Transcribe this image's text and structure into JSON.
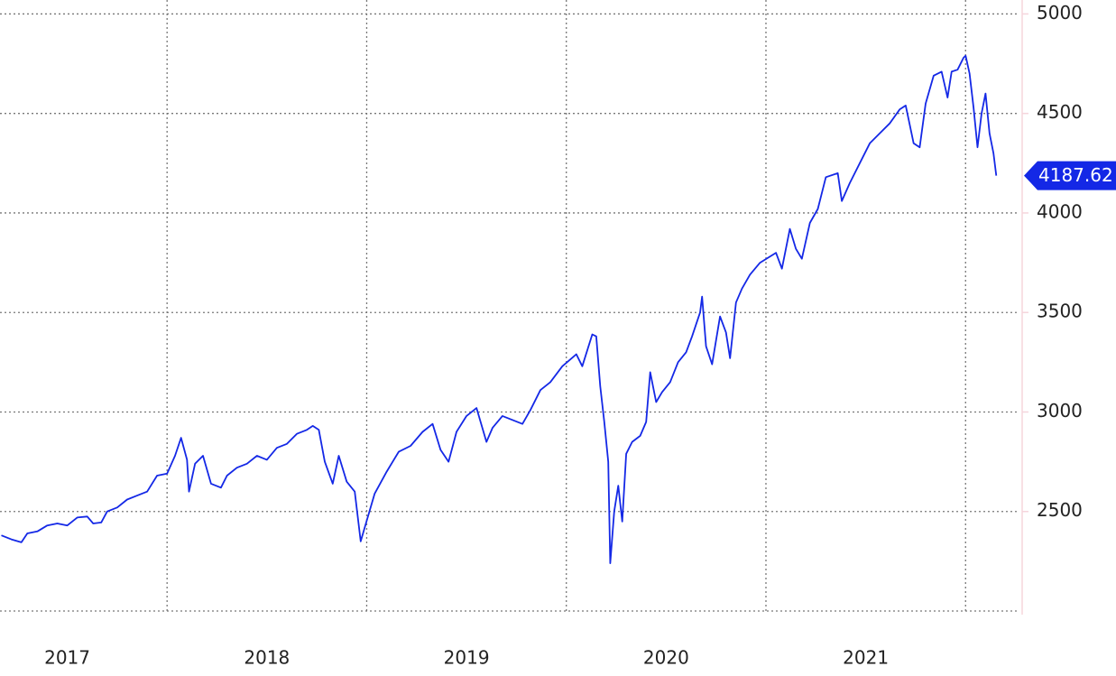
{
  "chart_data": {
    "type": "line",
    "x": [
      2017.17,
      2017.22,
      2017.27,
      2017.3,
      2017.35,
      2017.4,
      2017.45,
      2017.5,
      2017.55,
      2017.6,
      2017.63,
      2017.67,
      2017.7,
      2017.75,
      2017.8,
      2017.85,
      2017.9,
      2017.95,
      2018.0,
      2018.04,
      2018.07,
      2018.1,
      2018.11,
      2018.14,
      2018.18,
      2018.22,
      2018.27,
      2018.3,
      2018.35,
      2018.4,
      2018.45,
      2018.5,
      2018.55,
      2018.6,
      2018.65,
      2018.7,
      2018.73,
      2018.76,
      2018.79,
      2018.83,
      2018.86,
      2018.9,
      2018.94,
      2018.97,
      2018.99,
      2019.04,
      2019.1,
      2019.16,
      2019.22,
      2019.28,
      2019.33,
      2019.37,
      2019.41,
      2019.45,
      2019.5,
      2019.55,
      2019.6,
      2019.63,
      2019.68,
      2019.73,
      2019.78,
      2019.82,
      2019.87,
      2019.92,
      2019.98,
      2020.05,
      2020.08,
      2020.13,
      2020.15,
      2020.17,
      2020.19,
      2020.21,
      2020.22,
      2020.24,
      2020.26,
      2020.28,
      2020.3,
      2020.33,
      2020.37,
      2020.4,
      2020.42,
      2020.45,
      2020.48,
      2020.52,
      2020.56,
      2020.6,
      2020.63,
      2020.67,
      2020.68,
      2020.7,
      2020.73,
      2020.77,
      2020.8,
      2020.82,
      2020.85,
      2020.88,
      2020.92,
      2020.97,
      2021.05,
      2021.08,
      2021.12,
      2021.15,
      2021.18,
      2021.22,
      2021.26,
      2021.3,
      2021.36,
      2021.38,
      2021.42,
      2021.47,
      2021.52,
      2021.57,
      2021.62,
      2021.67,
      2021.7,
      2021.74,
      2021.77,
      2021.8,
      2021.84,
      2021.88,
      2021.91,
      2021.93,
      2021.96,
      2021.99,
      2022.0,
      2022.02,
      2022.04,
      2022.06,
      2022.08,
      2022.1,
      2022.12,
      2022.14,
      2022.154
    ],
    "series": [
      {
        "color": "#1428e6",
        "values": [
          2380,
          2360,
          2345,
          2390,
          2400,
          2430,
          2440,
          2430,
          2470,
          2475,
          2440,
          2445,
          2500,
          2520,
          2560,
          2580,
          2600,
          2680,
          2690,
          2780,
          2870,
          2760,
          2600,
          2740,
          2780,
          2640,
          2620,
          2680,
          2720,
          2740,
          2780,
          2760,
          2820,
          2840,
          2890,
          2910,
          2930,
          2910,
          2750,
          2640,
          2780,
          2650,
          2600,
          2350,
          2420,
          2590,
          2700,
          2800,
          2830,
          2900,
          2940,
          2810,
          2750,
          2900,
          2980,
          3020,
          2850,
          2920,
          2980,
          2960,
          2940,
          3010,
          3110,
          3150,
          3230,
          3290,
          3230,
          3390,
          3380,
          3130,
          2950,
          2750,
          2240,
          2500,
          2630,
          2450,
          2790,
          2850,
          2880,
          2950,
          3200,
          3050,
          3100,
          3150,
          3250,
          3300,
          3380,
          3500,
          3580,
          3330,
          3240,
          3480,
          3400,
          3270,
          3550,
          3620,
          3690,
          3750,
          3800,
          3720,
          3920,
          3820,
          3770,
          3950,
          4020,
          4180,
          4200,
          4060,
          4150,
          4250,
          4350,
          4400,
          4450,
          4520,
          4540,
          4350,
          4330,
          4550,
          4690,
          4710,
          4580,
          4710,
          4720,
          4780,
          4790,
          4700,
          4530,
          4330,
          4500,
          4600,
          4400,
          4300,
          4187.62
        ]
      }
    ],
    "xlim": [
      2017.163,
      2022.27
    ],
    "xticks": [
      {
        "value": 2017.5,
        "label": "2017"
      },
      {
        "value": 2018.5,
        "label": "2018"
      },
      {
        "value": 2019.5,
        "label": "2019"
      },
      {
        "value": 2020.5,
        "label": "2020"
      },
      {
        "value": 2021.5,
        "label": "2021"
      }
    ],
    "xgrid": [
      2018,
      2019,
      2020,
      2021,
      2022
    ],
    "ylim": [
      2000,
      5070
    ],
    "yticks": [
      2500,
      3000,
      3500,
      4000,
      4500,
      5000
    ],
    "grid": true,
    "y_axis_side": "right",
    "last_value_badge_color": "#1428e6"
  }
}
